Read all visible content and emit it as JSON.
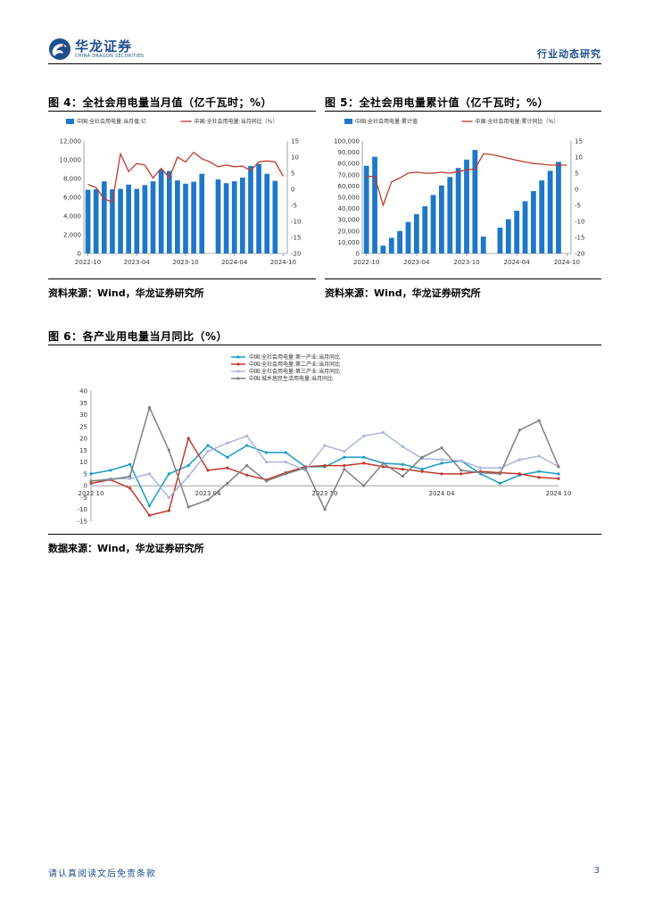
{
  "header": {
    "brand_cn": "华龙证券",
    "brand_en": "CHINA DRAGON SECURITIES",
    "right_label": "行业动态研究"
  },
  "fig4": {
    "title": "图 4：全社会用电量当月值（亿千瓦时；%）",
    "source": "资料来源：Wind，华龙证券研究所"
  },
  "fig5": {
    "title": "图 5：全社会用电量累计值（亿千瓦时；%）",
    "source": "资料来源：Wind，华龙证券研究所"
  },
  "fig6": {
    "title": "图 6：各产业用电量当月同比（%）",
    "source": "数据来源：Wind，华龙证券研究所"
  },
  "footer": {
    "disclaimer": "请认真阅读文后免责条款",
    "page": "3"
  },
  "colors": {
    "bar_blue": "#1f77c8",
    "line_red": "#c0392b",
    "s1": "#1a9bc8",
    "s2": "#c0392b",
    "s3": "#aab4dd",
    "s4": "#808080"
  },
  "chart_data": [
    {
      "id": "fig4",
      "type": "bar+line",
      "title": "",
      "categories": [
        "2022-10",
        "2022-11",
        "2022-12",
        "2023-01",
        "2023-02",
        "2023-03",
        "2023-04",
        "2023-05",
        "2023-06",
        "2023-07",
        "2023-08",
        "2023-09",
        "2023-10",
        "2023-11",
        "2023-12",
        "2024-01",
        "2024-02",
        "2024-03",
        "2024-04",
        "2024-05",
        "2024-06",
        "2024-07",
        "2024-08",
        "2024-09",
        "2024-10"
      ],
      "x_ticks": [
        "2022-10",
        "2023-04",
        "2023-10",
        "2024-04",
        "2024-10"
      ],
      "series": [
        {
          "name": "中国:全社会用电量:当月值:亿",
          "type": "bar",
          "axis": "left",
          "values": [
            6800,
            6850,
            7700,
            6850,
            6900,
            7350,
            6900,
            7300,
            7700,
            8950,
            8800,
            7800,
            7450,
            7650,
            8500,
            null,
            7900,
            7500,
            7700,
            8100,
            9350,
            9550,
            8500,
            7750,
            null
          ]
        },
        {
          "name": "中国:全社会用电量:当月同比（%）",
          "type": "line",
          "axis": "right",
          "values": [
            1.5,
            0.5,
            -3.0,
            -4.0,
            11.0,
            5.5,
            8.0,
            7.5,
            3.5,
            6.5,
            3.5,
            10.0,
            8.5,
            11.5,
            9.5,
            8.5,
            7.0,
            7.5,
            7.0,
            7.2,
            5.8,
            8.5,
            8.8,
            8.5,
            4.0
          ]
        }
      ],
      "ylim_left": [
        0,
        12000
      ],
      "ylim_right": [
        -20,
        15
      ],
      "yticks_left": [
        "0",
        "2,000",
        "4,000",
        "6,000",
        "8,000",
        "10,000",
        "12,000"
      ],
      "yticks_right": [
        "-20",
        "-15",
        "-10",
        "-5",
        "0",
        "5",
        "10",
        "15"
      ],
      "legend_position": "top"
    },
    {
      "id": "fig5",
      "type": "bar+line",
      "title": "",
      "categories": [
        "2022-10",
        "2022-11",
        "2022-12",
        "2023-01",
        "2023-02",
        "2023-03",
        "2023-04",
        "2023-05",
        "2023-06",
        "2023-07",
        "2023-08",
        "2023-09",
        "2023-10",
        "2023-11",
        "2023-12",
        "2024-01",
        "2024-02",
        "2024-03",
        "2024-04",
        "2024-05",
        "2024-06",
        "2024-07",
        "2024-08",
        "2024-09",
        "2024-10"
      ],
      "x_ticks": [
        "2022-10",
        "2023-04",
        "2023-10",
        "2024-04",
        "2024-10"
      ],
      "series": [
        {
          "name": "中国:全社会用电量:累计值",
          "type": "bar",
          "axis": "left",
          "values": [
            78000,
            86000,
            7000,
            14000,
            20000,
            28000,
            35000,
            42000,
            52000,
            60500,
            68000,
            76000,
            83500,
            92000,
            15000,
            null,
            23000,
            30500,
            38000,
            46500,
            55500,
            65000,
            73500,
            81500,
            null
          ]
        },
        {
          "name": "中国:全社会用电量:累计同比（%）",
          "type": "line",
          "axis": "right",
          "values": [
            4.0,
            4.0,
            -5.0,
            2.3,
            3.5,
            5.0,
            5.3,
            5.0,
            5.0,
            5.3,
            5.0,
            5.5,
            6.0,
            6.3,
            11.0,
            10.8,
            10.2,
            9.6,
            9.0,
            8.5,
            8.0,
            7.8,
            7.5,
            7.5,
            7.5
          ]
        }
      ],
      "ylim_left": [
        0,
        100000
      ],
      "ylim_right": [
        -20,
        15
      ],
      "yticks_left": [
        "0",
        "10,000",
        "20,000",
        "30,000",
        "40,000",
        "50,000",
        "60,000",
        "70,000",
        "80,000",
        "90,000",
        "100,000"
      ],
      "yticks_right": [
        "-20",
        "-15",
        "-10",
        "-5",
        "0",
        "5",
        "10",
        "15"
      ],
      "legend_position": "top"
    },
    {
      "id": "fig6",
      "type": "line",
      "title": "",
      "categories": [
        "2022-10",
        "2022-11",
        "2022-12",
        "2023-01",
        "2023-02",
        "2023-03",
        "2023-04",
        "2023-05",
        "2023-06",
        "2023-07",
        "2023-08",
        "2023-09",
        "2023-10",
        "2023-11",
        "2023-12",
        "2024-01",
        "2024-02",
        "2024-03",
        "2024-04",
        "2024-05",
        "2024-06",
        "2024-07",
        "2024-08",
        "2024-09",
        "2024-10"
      ],
      "x_ticks": [
        "2022 10",
        "2023 04",
        "2023 10",
        "2024 04",
        "2024 10"
      ],
      "series": [
        {
          "name": "中国:全社会用电量:第一产业:当月同比",
          "values": [
            5,
            6.5,
            9,
            -8.5,
            5,
            8.5,
            17,
            12,
            17,
            14,
            14,
            8,
            8,
            12,
            12,
            9.5,
            9,
            7,
            9.5,
            10.5,
            5,
            1,
            4.5,
            6,
            5
          ]
        },
        {
          "name": "中国:全社会用电量:第二产业:当月同比",
          "values": [
            1,
            2.5,
            -1,
            -12.5,
            -10.5,
            20,
            6.5,
            7.5,
            4.5,
            2.5,
            5.5,
            8,
            8.5,
            8.5,
            9.5,
            8,
            7,
            6,
            5,
            5,
            6,
            5.5,
            5,
            3.5,
            3
          ]
        },
        {
          "name": "中国:全社会用电量:第三产业:当月同比",
          "values": [
            2,
            3,
            3,
            5,
            -5,
            4,
            14.5,
            18,
            21,
            10,
            10,
            6.5,
            17,
            14.5,
            21,
            22.5,
            16.5,
            11.5,
            11,
            10.5,
            7.5,
            7.5,
            11,
            12.5,
            8
          ]
        },
        {
          "name": "中国:城乡居民生活用电量:当月同比",
          "values": [
            2,
            2.5,
            4,
            33,
            15,
            -9,
            -6,
            1,
            8.5,
            2,
            5,
            7.5,
            -10,
            7,
            0,
            9.5,
            4,
            12,
            16,
            6.5,
            5.5,
            5,
            23.5,
            27.5,
            8
          ]
        }
      ],
      "ylim": [
        -15,
        40
      ],
      "yticks": [
        "-15",
        "-10",
        "-5",
        "0",
        "5",
        "10",
        "15",
        "20",
        "25",
        "30",
        "35",
        "40"
      ],
      "legend_position": "top"
    }
  ]
}
